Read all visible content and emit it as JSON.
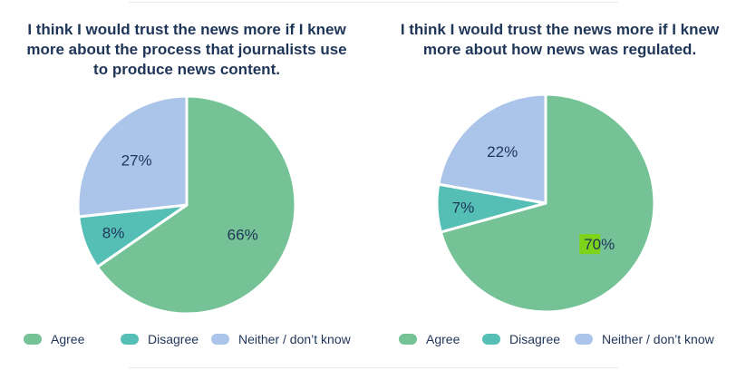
{
  "colors": {
    "agree": "#74c295",
    "disagree": "#55bfb6",
    "neither": "#abc4ea",
    "highlight": "#7dd21a",
    "text": "#1f3558"
  },
  "chart_data": [
    {
      "type": "pie",
      "title_lines": [
        "I think I would trust the news more if I knew",
        "more about the process that journalists use",
        "to produce news content."
      ],
      "slices": [
        {
          "label": "Agree",
          "value": 66,
          "text": "66%"
        },
        {
          "label": "Disagree",
          "value": 8,
          "text": "8%"
        },
        {
          "label": "Neither / don’t know",
          "value": 27,
          "text": "27%"
        }
      ],
      "legend": [
        "Agree",
        "Disagree",
        "Neither / don’t know"
      ]
    },
    {
      "type": "pie",
      "title_lines": [
        "I think I would trust the news more if I knew",
        "more about how news was regulated."
      ],
      "slices": [
        {
          "label": "Agree",
          "value": 70,
          "text": "70%"
        },
        {
          "label": "Disagree",
          "value": 7,
          "text": "7%"
        },
        {
          "label": "Neither / don’t know",
          "value": 22,
          "text": "22%"
        }
      ],
      "legend": [
        "Agree",
        "Disagree",
        "Neither / don’t know"
      ]
    }
  ]
}
